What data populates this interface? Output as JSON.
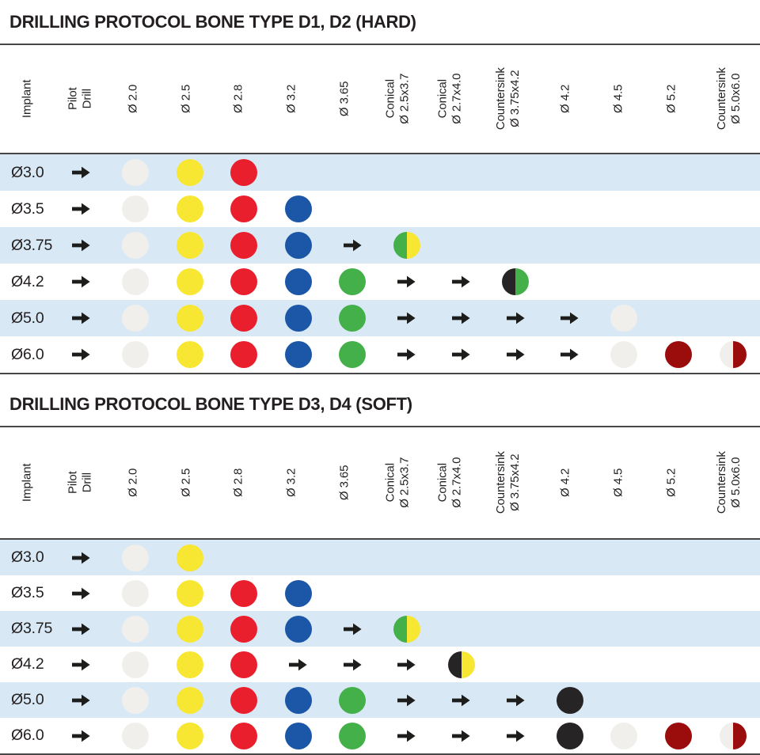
{
  "page": {
    "kind": "dental implant drilling protocol chart"
  },
  "colors": {
    "white": "#f1efec",
    "yellow": "#f7e733",
    "red": "#ea1f2d",
    "blue": "#1b56a7",
    "green": "#43b04a",
    "black": "#272425",
    "darkred": "#9b0c0c",
    "band": "#d8e9f5",
    "rule": "#474747",
    "arrow": "#1d1d1b",
    "text": "#231f20"
  },
  "icons": {
    "arrow": "right-arrow-icon"
  },
  "tables": [
    {
      "title": "DRILLING PROTOCOL BONE TYPE D1, D2 (HARD)",
      "columns": [
        "Implant",
        "Pilot\nDrill",
        "Ø 2.0",
        "Ø 2.5",
        "Ø 2.8",
        "Ø 3.2",
        "Ø 3.65",
        "Conical\nØ 2.5x3.7",
        "Conical\nØ 2.7x4.0",
        "Countersink\nØ 3.75x4.2",
        "Ø 4.2",
        "Ø 4.5",
        "Ø 5.2",
        "Countersink\nØ 5.0x6.0"
      ],
      "rows": [
        {
          "label": "Ø3.0",
          "cells": [
            "arrow",
            "dot:white",
            "dot:yellow",
            "dot:red",
            "",
            "",
            "",
            "",
            "",
            "",
            "",
            "",
            ""
          ]
        },
        {
          "label": "Ø3.5",
          "cells": [
            "arrow",
            "dot:white",
            "dot:yellow",
            "dot:red",
            "dot:blue",
            "",
            "",
            "",
            "",
            "",
            "",
            "",
            ""
          ]
        },
        {
          "label": "Ø3.75",
          "cells": [
            "arrow",
            "dot:white",
            "dot:yellow",
            "dot:red",
            "dot:blue",
            "arrow",
            "half:green,yellow",
            "",
            "",
            "",
            "",
            "",
            ""
          ]
        },
        {
          "label": "Ø4.2",
          "cells": [
            "arrow",
            "dot:white",
            "dot:yellow",
            "dot:red",
            "dot:blue",
            "dot:green",
            "arrow",
            "arrow",
            "half:black,green",
            "",
            "",
            "",
            ""
          ]
        },
        {
          "label": "Ø5.0",
          "cells": [
            "arrow",
            "dot:white",
            "dot:yellow",
            "dot:red",
            "dot:blue",
            "dot:green",
            "arrow",
            "arrow",
            "arrow",
            "arrow",
            "dot:white",
            "",
            ""
          ]
        },
        {
          "label": "Ø6.0",
          "cells": [
            "arrow",
            "dot:white",
            "dot:yellow",
            "dot:red",
            "dot:blue",
            "dot:green",
            "arrow",
            "arrow",
            "arrow",
            "arrow",
            "dot:white",
            "dot:darkred",
            "half:white,darkred"
          ]
        }
      ]
    },
    {
      "title": "DRILLING PROTOCOL BONE TYPE D3, D4 (SOFT)",
      "columns": [
        "Implant",
        "Pilot\nDrill",
        "Ø 2.0",
        "Ø 2.5",
        "Ø 2.8",
        "Ø 3.2",
        "Ø 3.65",
        "Conical\nØ 2.5x3.7",
        "Conical\nØ 2.7x4.0",
        "Countersink\nØ 3.75x4.2",
        "Ø 4.2",
        "Ø 4.5",
        "Ø 5.2",
        "Countersink\nØ 5.0x6.0"
      ],
      "rows": [
        {
          "label": "Ø3.0",
          "cells": [
            "arrow",
            "dot:white",
            "dot:yellow",
            "",
            "",
            "",
            "",
            "",
            "",
            "",
            "",
            "",
            ""
          ]
        },
        {
          "label": "Ø3.5",
          "cells": [
            "arrow",
            "dot:white",
            "dot:yellow",
            "dot:red",
            "dot:blue",
            "",
            "",
            "",
            "",
            "",
            "",
            "",
            ""
          ]
        },
        {
          "label": "Ø3.75",
          "cells": [
            "arrow",
            "dot:white",
            "dot:yellow",
            "dot:red",
            "dot:blue",
            "arrow",
            "half:green,yellow",
            "",
            "",
            "",
            "",
            "",
            ""
          ]
        },
        {
          "label": "Ø4.2",
          "cells": [
            "arrow",
            "dot:white",
            "dot:yellow",
            "dot:red",
            "arrow",
            "arrow",
            "arrow",
            "half:black,yellow",
            "",
            "",
            "",
            "",
            ""
          ]
        },
        {
          "label": "Ø5.0",
          "cells": [
            "arrow",
            "dot:white",
            "dot:yellow",
            "dot:red",
            "dot:blue",
            "dot:green",
            "arrow",
            "arrow",
            "arrow",
            "dot:black",
            "",
            "",
            ""
          ]
        },
        {
          "label": "Ø6.0",
          "cells": [
            "arrow",
            "dot:white",
            "dot:yellow",
            "dot:red",
            "dot:blue",
            "dot:green",
            "arrow",
            "arrow",
            "arrow",
            "dot:black",
            "dot:white",
            "dot:darkred",
            "half:white,darkred"
          ]
        }
      ]
    }
  ]
}
